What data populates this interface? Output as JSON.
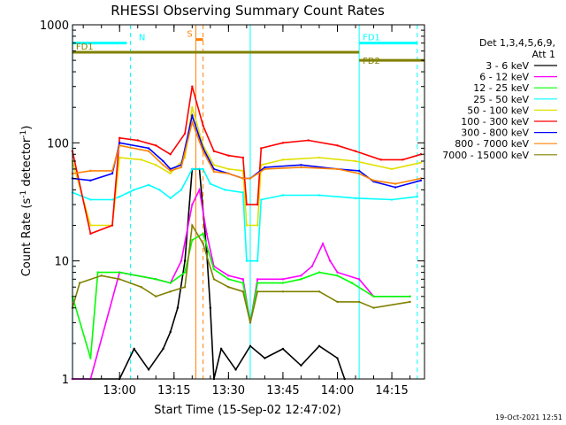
{
  "chart_data": {
    "type": "line",
    "title": "RHESSI Observing Summary Count Rates",
    "xlabel": "Start Time (15-Sep-02 12:47:02)",
    "ylabel_main": "Count Rate (s",
    "ylabel_sup1": "-1",
    "ylabel_mid": " detector",
    "ylabel_sup2": "-1",
    "ylabel_end": ")",
    "y_scale": "log",
    "ylim": [
      1,
      1000
    ],
    "xlim": [
      "12:47:02",
      "14:24"
    ],
    "x_ticks": [
      "13:00",
      "13:15",
      "13:30",
      "13:45",
      "14:00",
      "14:15"
    ],
    "y_ticks": [
      "1",
      "10",
      "100",
      "1000"
    ],
    "legend": {
      "header1": "Det 1,3,4,5,6,9,",
      "header2": "Att 1",
      "position": "right"
    },
    "series": [
      {
        "name": "3 - 6 keV",
        "color": "#000000",
        "points": [
          [
            "12:47",
            1
          ],
          [
            "13:00",
            1
          ],
          [
            "13:04",
            1.8
          ],
          [
            "13:08",
            1.2
          ],
          [
            "13:12",
            1.8
          ],
          [
            "13:14",
            2.5
          ],
          [
            "13:16",
            4
          ],
          [
            "13:18",
            10
          ],
          [
            "13:20",
            60
          ],
          [
            "13:22",
            60
          ],
          [
            "13:24",
            12
          ],
          [
            "13:25",
            4
          ],
          [
            "13:26",
            1
          ],
          [
            "13:28",
            1.8
          ],
          [
            "13:32",
            1.2
          ],
          [
            "13:36",
            1.9
          ],
          [
            "13:40",
            1.5
          ],
          [
            "13:45",
            1.8
          ],
          [
            "13:50",
            1.3
          ],
          [
            "13:55",
            1.9
          ],
          [
            "14:00",
            1.5
          ],
          [
            "14:02",
            1
          ]
        ]
      },
      {
        "name": "6 - 12 keV",
        "color": "#ff00ff",
        "points": [
          [
            "12:47",
            1
          ],
          [
            "12:52",
            1
          ],
          [
            "13:00",
            8
          ],
          [
            "13:10",
            7
          ],
          [
            "13:14",
            6.5
          ],
          [
            "13:17",
            10
          ],
          [
            "13:20",
            30
          ],
          [
            "13:22",
            40
          ],
          [
            "13:24",
            17
          ],
          [
            "13:26",
            9
          ],
          [
            "13:30",
            7.5
          ],
          [
            "13:34",
            7
          ],
          [
            "13:36",
            3
          ],
          [
            "13:38",
            7
          ],
          [
            "13:45",
            7
          ],
          [
            "13:50",
            7.5
          ],
          [
            "13:53",
            9
          ],
          [
            "13:56",
            14
          ],
          [
            "13:58",
            10
          ],
          [
            "14:00",
            8
          ],
          [
            "14:06",
            7
          ],
          [
            "14:10",
            5
          ],
          [
            "14:20",
            5
          ]
        ]
      },
      {
        "name": "12 - 25 keV",
        "color": "#00ff00",
        "points": [
          [
            "12:47",
            5
          ],
          [
            "12:52",
            1.5
          ],
          [
            "12:54",
            8
          ],
          [
            "13:00",
            8
          ],
          [
            "13:10",
            7
          ],
          [
            "13:14",
            6.5
          ],
          [
            "13:18",
            8
          ],
          [
            "13:20",
            15
          ],
          [
            "13:23",
            17
          ],
          [
            "13:26",
            8.5
          ],
          [
            "13:30",
            7
          ],
          [
            "13:34",
            6.5
          ],
          [
            "13:36",
            3
          ],
          [
            "13:38",
            6.5
          ],
          [
            "13:45",
            6.5
          ],
          [
            "13:50",
            7
          ],
          [
            "13:55",
            8
          ],
          [
            "14:00",
            7.5
          ],
          [
            "14:04",
            6.5
          ],
          [
            "14:10",
            5
          ],
          [
            "14:20",
            5
          ]
        ]
      },
      {
        "name": "25 - 50 keV",
        "color": "#00ffff",
        "points": [
          [
            "12:47",
            38
          ],
          [
            "12:52",
            33
          ],
          [
            "12:58",
            33
          ],
          [
            "13:00",
            35
          ],
          [
            "13:04",
            40
          ],
          [
            "13:08",
            44
          ],
          [
            "13:11",
            40
          ],
          [
            "13:14",
            34
          ],
          [
            "13:17",
            40
          ],
          [
            "13:20",
            60
          ],
          [
            "13:23",
            60
          ],
          [
            "13:25",
            45
          ],
          [
            "13:29",
            40
          ],
          [
            "13:34",
            38
          ],
          [
            "13:35",
            10
          ],
          [
            "13:38",
            10
          ],
          [
            "13:39",
            33
          ],
          [
            "13:45",
            36
          ],
          [
            "13:55",
            36
          ],
          [
            "14:05",
            34
          ],
          [
            "14:15",
            33
          ],
          [
            "14:22",
            35
          ]
        ]
      },
      {
        "name": "50 - 100 keV",
        "color": "#e0e000",
        "points": [
          [
            "12:47",
            70
          ],
          [
            "12:52",
            20
          ],
          [
            "12:58",
            20
          ],
          [
            "13:00",
            75
          ],
          [
            "13:06",
            72
          ],
          [
            "13:10",
            65
          ],
          [
            "13:14",
            55
          ],
          [
            "13:18",
            75
          ],
          [
            "13:20",
            200
          ],
          [
            "13:23",
            95
          ],
          [
            "13:26",
            65
          ],
          [
            "13:30",
            60
          ],
          [
            "13:34",
            58
          ],
          [
            "13:35",
            20
          ],
          [
            "13:38",
            20
          ],
          [
            "13:39",
            65
          ],
          [
            "13:45",
            72
          ],
          [
            "13:55",
            75
          ],
          [
            "14:05",
            70
          ],
          [
            "14:15",
            60
          ],
          [
            "14:23",
            68
          ]
        ]
      },
      {
        "name": "100 - 300 keV",
        "color": "#ff0000",
        "points": [
          [
            "12:47",
            85
          ],
          [
            "12:52",
            17
          ],
          [
            "12:58",
            20
          ],
          [
            "13:00",
            110
          ],
          [
            "13:05",
            105
          ],
          [
            "13:10",
            95
          ],
          [
            "13:14",
            80
          ],
          [
            "13:18",
            120
          ],
          [
            "13:20",
            300
          ],
          [
            "13:23",
            140
          ],
          [
            "13:26",
            85
          ],
          [
            "13:30",
            78
          ],
          [
            "13:34",
            75
          ],
          [
            "13:35",
            30
          ],
          [
            "13:38",
            30
          ],
          [
            "13:39",
            90
          ],
          [
            "13:45",
            100
          ],
          [
            "13:52",
            105
          ],
          [
            "14:00",
            95
          ],
          [
            "14:05",
            85
          ],
          [
            "14:12",
            72
          ],
          [
            "14:18",
            72
          ],
          [
            "14:23",
            80
          ]
        ]
      },
      {
        "name": "300 - 800 keV",
        "color": "#0000ff",
        "points": [
          [
            "12:47",
            50
          ],
          [
            "12:52",
            48
          ],
          [
            "12:58",
            55
          ],
          [
            "13:00",
            100
          ],
          [
            "13:08",
            90
          ],
          [
            "13:12",
            70
          ],
          [
            "13:14",
            60
          ],
          [
            "13:17",
            65
          ],
          [
            "13:20",
            170
          ],
          [
            "13:23",
            90
          ],
          [
            "13:26",
            60
          ],
          [
            "13:30",
            55
          ],
          [
            "13:34",
            50
          ],
          [
            "13:36",
            50
          ],
          [
            "13:40",
            62
          ],
          [
            "13:50",
            65
          ],
          [
            "14:00",
            60
          ],
          [
            "14:06",
            58
          ],
          [
            "14:10",
            47
          ],
          [
            "14:16",
            42
          ],
          [
            "14:23",
            48
          ]
        ]
      },
      {
        "name": "800 - 7000 keV",
        "color": "#ff8000",
        "points": [
          [
            "12:47",
            55
          ],
          [
            "12:52",
            58
          ],
          [
            "12:58",
            58
          ],
          [
            "13:00",
            95
          ],
          [
            "13:08",
            85
          ],
          [
            "13:12",
            65
          ],
          [
            "13:14",
            58
          ],
          [
            "13:17",
            62
          ],
          [
            "13:20",
            150
          ],
          [
            "13:23",
            85
          ],
          [
            "13:26",
            57
          ],
          [
            "13:30",
            55
          ],
          [
            "13:34",
            50
          ],
          [
            "13:36",
            50
          ],
          [
            "13:40",
            60
          ],
          [
            "13:50",
            62
          ],
          [
            "14:00",
            60
          ],
          [
            "14:06",
            55
          ],
          [
            "14:10",
            48
          ],
          [
            "14:16",
            45
          ],
          [
            "14:23",
            50
          ]
        ]
      },
      {
        "name": "7000 - 15000 keV",
        "color": "#808000",
        "points": [
          [
            "12:47",
            4
          ],
          [
            "12:49",
            6.5
          ],
          [
            "12:55",
            7.5
          ],
          [
            "13:00",
            7
          ],
          [
            "13:06",
            6
          ],
          [
            "13:10",
            5
          ],
          [
            "13:14",
            5.5
          ],
          [
            "13:18",
            6
          ],
          [
            "13:20",
            20
          ],
          [
            "13:23",
            14
          ],
          [
            "13:26",
            7
          ],
          [
            "13:30",
            6
          ],
          [
            "13:34",
            5.5
          ],
          [
            "13:36",
            3
          ],
          [
            "13:38",
            5.5
          ],
          [
            "13:45",
            5.5
          ],
          [
            "13:55",
            5.5
          ],
          [
            "14:00",
            4.5
          ],
          [
            "14:06",
            4.5
          ],
          [
            "14:10",
            4
          ],
          [
            "14:20",
            4.5
          ]
        ]
      }
    ],
    "intervals": [
      {
        "label": "N",
        "color": "#00ffff",
        "start": "12:47",
        "end": "13:02",
        "level": 700
      },
      {
        "label": "FD1",
        "color": "#808000",
        "start": "12:47",
        "end": "14:06",
        "level": 585
      },
      {
        "label": "FD1",
        "color": "#00ffff",
        "start": "14:06",
        "end": "14:22",
        "level": 700
      },
      {
        "label": "FD2",
        "color": "#808000",
        "start": "14:06",
        "end": "14:24",
        "level": 500
      },
      {
        "label": "S",
        "color": "#ff8000",
        "start": "13:21",
        "end": "13:23",
        "level": 750
      }
    ],
    "vlines": [
      {
        "time": "12:47",
        "color": "#00ffff",
        "dashed": false
      },
      {
        "time": "13:03",
        "color": "#00ffff",
        "dashed": true
      },
      {
        "time": "13:21",
        "color": "#ff8000",
        "dashed": false
      },
      {
        "time": "13:23",
        "color": "#ff8000",
        "dashed": true
      },
      {
        "time": "13:36",
        "color": "#00ffff",
        "dashed": false
      },
      {
        "time": "14:06",
        "color": "#00ffff",
        "dashed": false
      },
      {
        "time": "14:22",
        "color": "#00ffff",
        "dashed": true
      }
    ]
  },
  "footer": {
    "timestamp": "19-Oct-2021 12:51"
  }
}
